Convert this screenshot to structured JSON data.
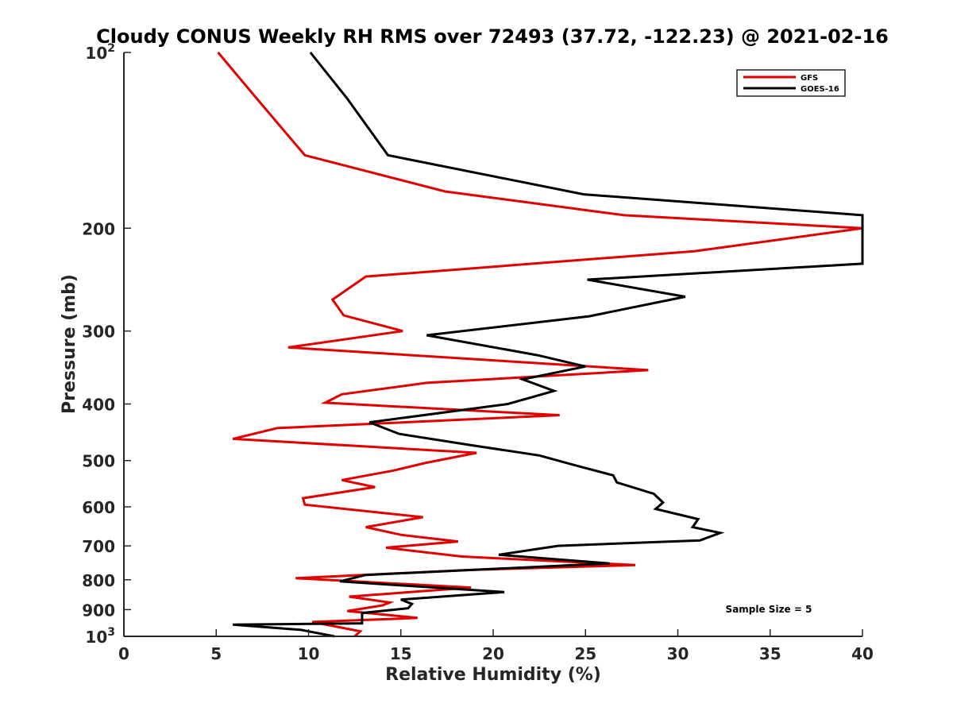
{
  "chart_data": {
    "type": "line",
    "title": "Cloudy CONUS Weekly RH RMS over 72493 (37.72, -122.23) @ 2021-02-16",
    "xlabel": "Relative Humidity (%)",
    "ylabel": "Pressure (mb)",
    "xlim": [
      0,
      40
    ],
    "ylim": [
      100,
      1000
    ],
    "y_scale": "log",
    "y_reversed": true,
    "x_ticks": [
      "0",
      "5",
      "10",
      "15",
      "20",
      "25",
      "30",
      "35",
      "40"
    ],
    "y_ticks": [
      {
        "value": 100,
        "base": "10",
        "exp": "2"
      },
      {
        "value": 200,
        "label": "200"
      },
      {
        "value": 300,
        "label": "300"
      },
      {
        "value": 400,
        "label": "400"
      },
      {
        "value": 500,
        "label": "500"
      },
      {
        "value": 600,
        "label": "600"
      },
      {
        "value": 700,
        "label": "700"
      },
      {
        "value": 800,
        "label": "800"
      },
      {
        "value": 900,
        "label": "900"
      },
      {
        "value": 1000,
        "base": "10",
        "exp": "3"
      }
    ],
    "legend_position": "top-right",
    "annotation": "Sample Size = 5",
    "series": [
      {
        "name": "GFS",
        "color": "#e00000",
        "points": [
          [
            5.1,
            100
          ],
          [
            7.2,
            120
          ],
          [
            9.8,
            150
          ],
          [
            17.4,
            173
          ],
          [
            27.1,
            190
          ],
          [
            40.2,
            200
          ],
          [
            30.9,
            219
          ],
          [
            13.1,
            242
          ],
          [
            11.3,
            265
          ],
          [
            11.9,
            282
          ],
          [
            15.1,
            300
          ],
          [
            8.9,
            320
          ],
          [
            28.4,
            350
          ],
          [
            16.4,
            368
          ],
          [
            11.8,
            385
          ],
          [
            10.9,
            398
          ],
          [
            23.6,
            418
          ],
          [
            8.3,
            440
          ],
          [
            5.9,
            459
          ],
          [
            19.1,
            485
          ],
          [
            16.3,
            505
          ],
          [
            14.6,
            520
          ],
          [
            11.8,
            540
          ],
          [
            13.6,
            555
          ],
          [
            9.7,
            580
          ],
          [
            9.8,
            595
          ],
          [
            16.2,
            625
          ],
          [
            13.1,
            650
          ],
          [
            15.0,
            670
          ],
          [
            18.1,
            688
          ],
          [
            14.2,
            705
          ],
          [
            18.3,
            730
          ],
          [
            27.7,
            755
          ],
          [
            18.5,
            770
          ],
          [
            9.3,
            795
          ],
          [
            18.8,
            825
          ],
          [
            12.2,
            855
          ],
          [
            14.4,
            875
          ],
          [
            14.0,
            885
          ],
          [
            12.1,
            905
          ],
          [
            15.9,
            930
          ],
          [
            10.2,
            945
          ],
          [
            12.8,
            980
          ],
          [
            12.5,
            1000
          ]
        ]
      },
      {
        "name": "GOES-16",
        "color": "#000000",
        "points": [
          [
            10.1,
            100
          ],
          [
            12.1,
            120
          ],
          [
            14.3,
            150
          ],
          [
            24.9,
            175
          ],
          [
            40.2,
            190
          ],
          [
            40.2,
            230
          ],
          [
            25.1,
            245
          ],
          [
            30.4,
            262
          ],
          [
            25.2,
            283
          ],
          [
            16.4,
            305
          ],
          [
            22.4,
            330
          ],
          [
            25.0,
            345
          ],
          [
            21.6,
            363
          ],
          [
            23.3,
            380
          ],
          [
            20.8,
            400
          ],
          [
            13.3,
            430
          ],
          [
            14.9,
            450
          ],
          [
            18.7,
            470
          ],
          [
            22.5,
            490
          ],
          [
            24.5,
            510
          ],
          [
            26.5,
            530
          ],
          [
            26.7,
            545
          ],
          [
            28.7,
            570
          ],
          [
            29.2,
            590
          ],
          [
            28.8,
            605
          ],
          [
            31.1,
            630
          ],
          [
            30.8,
            650
          ],
          [
            32.3,
            665
          ],
          [
            31.2,
            685
          ],
          [
            23.5,
            700
          ],
          [
            20.3,
            725
          ],
          [
            26.3,
            750
          ],
          [
            13.1,
            785
          ],
          [
            11.7,
            805
          ],
          [
            20.6,
            840
          ],
          [
            15.0,
            865
          ],
          [
            15.6,
            880
          ],
          [
            15.4,
            895
          ],
          [
            12.9,
            912
          ],
          [
            12.9,
            950
          ],
          [
            5.9,
            955
          ],
          [
            9.6,
            975
          ],
          [
            11.4,
            1000
          ]
        ]
      }
    ]
  }
}
